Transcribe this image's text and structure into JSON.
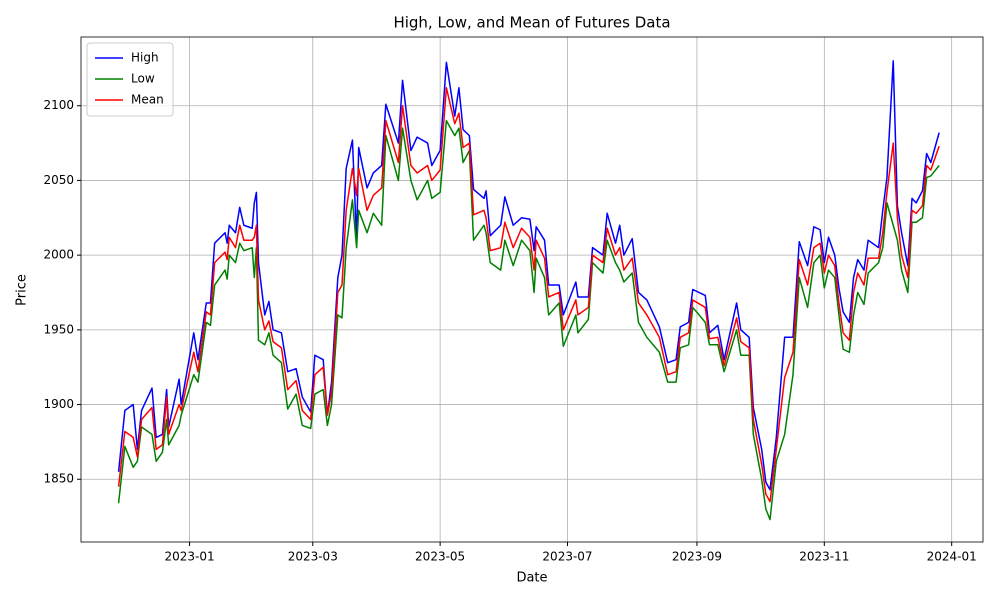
{
  "chart_data": {
    "type": "line",
    "title": "High, Low, and Mean of Futures Data",
    "x_label": "Date",
    "y_label": "Price",
    "x": [
      "2022-11-28",
      "2022-12-01",
      "2022-12-05",
      "2022-12-07",
      "2022-12-09",
      "2022-12-14",
      "2022-12-16",
      "2022-12-19",
      "2022-12-21",
      "2022-12-22",
      "2022-12-27",
      "2022-12-28",
      "2023-01-03",
      "2023-01-05",
      "2023-01-09",
      "2023-01-11",
      "2023-01-13",
      "2023-01-18",
      "2023-01-19",
      "2023-01-20",
      "2023-01-23",
      "2023-01-25",
      "2023-01-27",
      "2023-01-31",
      "2023-02-01",
      "2023-02-02",
      "2023-02-03",
      "2023-02-06",
      "2023-02-08",
      "2023-02-10",
      "2023-02-14",
      "2023-02-17",
      "2023-02-21",
      "2023-02-24",
      "2023-02-28",
      "2023-03-02",
      "2023-03-06",
      "2023-03-08",
      "2023-03-10",
      "2023-03-13",
      "2023-03-15",
      "2023-03-17",
      "2023-03-20",
      "2023-03-22",
      "2023-03-23",
      "2023-03-27",
      "2023-03-30",
      "2023-04-03",
      "2023-04-05",
      "2023-04-11",
      "2023-04-13",
      "2023-04-17",
      "2023-04-20",
      "2023-04-25",
      "2023-04-27",
      "2023-05-01",
      "2023-05-04",
      "2023-05-08",
      "2023-05-10",
      "2023-05-12",
      "2023-05-15",
      "2023-05-17",
      "2023-05-22",
      "2023-05-23",
      "2023-05-25",
      "2023-05-30",
      "2023-06-01",
      "2023-06-05",
      "2023-06-09",
      "2023-06-13",
      "2023-06-15",
      "2023-06-16",
      "2023-06-20",
      "2023-06-22",
      "2023-06-27",
      "2023-06-29",
      "2023-07-05",
      "2023-07-06",
      "2023-07-11",
      "2023-07-13",
      "2023-07-18",
      "2023-07-20",
      "2023-07-24",
      "2023-07-26",
      "2023-07-28",
      "2023-08-01",
      "2023-08-04",
      "2023-08-08",
      "2023-08-14",
      "2023-08-18",
      "2023-08-22",
      "2023-08-24",
      "2023-08-28",
      "2023-08-30",
      "2023-09-05",
      "2023-09-07",
      "2023-09-11",
      "2023-09-14",
      "2023-09-20",
      "2023-09-22",
      "2023-09-26",
      "2023-09-28",
      "2023-10-02",
      "2023-10-04",
      "2023-10-06",
      "2023-10-09",
      "2023-10-13",
      "2023-10-17",
      "2023-10-20",
      "2023-10-24",
      "2023-10-27",
      "2023-10-30",
      "2023-11-01",
      "2023-11-03",
      "2023-11-06",
      "2023-11-08",
      "2023-11-10",
      "2023-11-13",
      "2023-11-15",
      "2023-11-17",
      "2023-11-20",
      "2023-11-22",
      "2023-11-27",
      "2023-11-29",
      "2023-12-01",
      "2023-12-04",
      "2023-12-06",
      "2023-12-08",
      "2023-12-11",
      "2023-12-13",
      "2023-12-15",
      "2023-12-18",
      "2023-12-20",
      "2023-12-22",
      "2023-12-26"
    ],
    "series": [
      {
        "name": "High",
        "color": "#0000ff",
        "values": [
          1855,
          1896,
          1900,
          1870,
          1896,
          1911,
          1878,
          1880,
          1910,
          1885,
          1917,
          1900,
          1948,
          1930,
          1968,
          1968,
          2008,
          2015,
          2008,
          2020,
          2015,
          2032,
          2020,
          2018,
          2035,
          2042,
          1995,
          1960,
          1969,
          1950,
          1948,
          1922,
          1924,
          1905,
          1895,
          1933,
          1930,
          1893,
          1915,
          1985,
          2000,
          2058,
          2077,
          2010,
          2072,
          2045,
          2055,
          2060,
          2101,
          2075,
          2117,
          2070,
          2079,
          2075,
          2060,
          2070,
          2129,
          2093,
          2112,
          2084,
          2080,
          2044,
          2038,
          2043,
          2013,
          2020,
          2039,
          2020,
          2025,
          2024,
          2003,
          2019,
          2010,
          1980,
          1980,
          1960,
          1982,
          1972,
          1972,
          2005,
          2000,
          2028,
          2008,
          2020,
          2000,
          2011,
          1975,
          1970,
          1952,
          1928,
          1930,
          1952,
          1955,
          1977,
          1973,
          1948,
          1953,
          1930,
          1968,
          1950,
          1945,
          1898,
          1870,
          1848,
          1843,
          1878,
          1945,
          1945,
          2009,
          1993,
          2019,
          2017,
          1995,
          2012,
          2000,
          1978,
          1962,
          1955,
          1985,
          1997,
          1990,
          2010,
          2005,
          2030,
          2052,
          2130,
          2033,
          2015,
          1993,
          2038,
          2035,
          2043,
          2068,
          2062,
          2082
        ]
      },
      {
        "name": "Low",
        "color": "#008000",
        "values": [
          1834,
          1872,
          1858,
          1862,
          1885,
          1880,
          1862,
          1868,
          1890,
          1873,
          1886,
          1893,
          1920,
          1915,
          1955,
          1953,
          1980,
          1990,
          1984,
          2000,
          1995,
          2008,
          2003,
          2005,
          1985,
          2005,
          1943,
          1940,
          1948,
          1933,
          1928,
          1897,
          1907,
          1886,
          1884,
          1907,
          1910,
          1886,
          1900,
          1960,
          1958,
          2005,
          2037,
          2005,
          2030,
          2015,
          2028,
          2020,
          2080,
          2050,
          2085,
          2050,
          2037,
          2050,
          2038,
          2042,
          2090,
          2080,
          2085,
          2062,
          2070,
          2010,
          2020,
          2015,
          1995,
          1990,
          2010,
          1993,
          2010,
          2003,
          1975,
          1998,
          1985,
          1960,
          1968,
          1939,
          1960,
          1948,
          1957,
          1995,
          1988,
          2010,
          1995,
          1990,
          1982,
          1988,
          1955,
          1945,
          1935,
          1915,
          1915,
          1938,
          1940,
          1965,
          1955,
          1940,
          1940,
          1922,
          1950,
          1933,
          1933,
          1880,
          1850,
          1830,
          1823,
          1862,
          1880,
          1920,
          1985,
          1965,
          1995,
          2000,
          1978,
          1990,
          1985,
          1960,
          1937,
          1935,
          1960,
          1975,
          1967,
          1988,
          1995,
          2005,
          2035,
          2020,
          2010,
          1990,
          1975,
          2022,
          2022,
          2025,
          2052,
          2053,
          2060
        ]
      },
      {
        "name": "Mean",
        "color": "#ff0000",
        "values": [
          1845,
          1882,
          1878,
          1865,
          1890,
          1898,
          1870,
          1873,
          1905,
          1880,
          1900,
          1896,
          1935,
          1922,
          1962,
          1960,
          1995,
          2002,
          1997,
          2012,
          2005,
          2020,
          2010,
          2010,
          2012,
          2020,
          1970,
          1950,
          1956,
          1942,
          1938,
          1910,
          1916,
          1896,
          1890,
          1920,
          1925,
          1893,
          1908,
          1975,
          1980,
          2030,
          2058,
          2040,
          2058,
          2030,
          2040,
          2045,
          2090,
          2062,
          2100,
          2060,
          2055,
          2060,
          2050,
          2057,
          2112,
          2088,
          2095,
          2072,
          2075,
          2027,
          2030,
          2025,
          2003,
          2005,
          2022,
          2005,
          2018,
          2012,
          1990,
          2010,
          1998,
          1972,
          1975,
          1950,
          1970,
          1960,
          1965,
          2000,
          1995,
          2018,
          2000,
          2005,
          1990,
          1998,
          1968,
          1960,
          1945,
          1920,
          1922,
          1945,
          1948,
          1970,
          1965,
          1944,
          1945,
          1926,
          1958,
          1942,
          1938,
          1890,
          1860,
          1840,
          1835,
          1870,
          1918,
          1935,
          1997,
          1980,
          2005,
          2008,
          1988,
          2000,
          1993,
          1968,
          1948,
          1943,
          1975,
          1988,
          1980,
          1998,
          1998,
          2015,
          2042,
          2075,
          2025,
          2000,
          1985,
          2030,
          2028,
          2033,
          2060,
          2057,
          2073
        ]
      }
    ],
    "xlim": [
      "2022-11-10",
      "2024-01-16"
    ],
    "xticks": [
      {
        "value": "2023-01-01",
        "label": "2023-01"
      },
      {
        "value": "2023-03-01",
        "label": "2023-03"
      },
      {
        "value": "2023-05-01",
        "label": "2023-05"
      },
      {
        "value": "2023-07-01",
        "label": "2023-07"
      },
      {
        "value": "2023-09-01",
        "label": "2023-09"
      },
      {
        "value": "2023-11-01",
        "label": "2023-11"
      },
      {
        "value": "2024-01-01",
        "label": "2024-01"
      }
    ],
    "ylim": [
      1808,
      2146
    ],
    "yticks": [
      1850,
      1900,
      1950,
      2000,
      2050,
      2100
    ],
    "grid": true,
    "legend": "upper left"
  }
}
